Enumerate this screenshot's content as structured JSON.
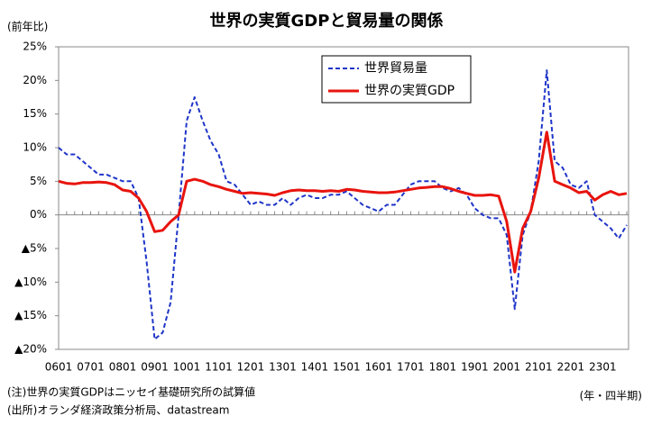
{
  "chart_data": {
    "type": "line",
    "title": "世界の実質GDPと貿易量の関係",
    "y_axis_label": "(前年比)",
    "x_axis_label": "(年・四半期)",
    "notes": [
      "(注)世界の実質GDPはニッセイ基礎研究所の試算値",
      "(出所)オランダ経済政策分析局、datastream"
    ],
    "categories": [
      "0601",
      null,
      null,
      null,
      "0701",
      null,
      null,
      null,
      "0801",
      null,
      null,
      null,
      "0901",
      null,
      null,
      null,
      "1001",
      null,
      null,
      null,
      "1101",
      null,
      null,
      null,
      "1201",
      null,
      null,
      null,
      "1301",
      null,
      null,
      null,
      "1401",
      null,
      null,
      null,
      "1501",
      null,
      null,
      null,
      "1601",
      null,
      null,
      null,
      "1701",
      null,
      null,
      null,
      "1801",
      null,
      null,
      null,
      "1901",
      null,
      null,
      null,
      "2001",
      null,
      null,
      null,
      "2101",
      null,
      null,
      null,
      "2201",
      null,
      null,
      null,
      "2301",
      null,
      null,
      null
    ],
    "series": [
      {
        "name": "世界貿易量",
        "color": "#1f35c8",
        "line_style": "dashed",
        "values": [
          10,
          9,
          9,
          8,
          7,
          6,
          6,
          5.5,
          5,
          5,
          2.5,
          -7,
          -18.5,
          -17.5,
          -13,
          0,
          14,
          17.5,
          14,
          11,
          9,
          5,
          4.5,
          3,
          1.5,
          2,
          1.5,
          1.5,
          2.5,
          1.5,
          2.5,
          3,
          2.5,
          2.5,
          3,
          3,
          3.5,
          2.5,
          1.5,
          1,
          0.5,
          1.5,
          1.5,
          3,
          4.5,
          5,
          5,
          5,
          4,
          3.5,
          4,
          3,
          1,
          0,
          -0.5,
          -0.5,
          -3,
          -14,
          -3,
          0.5,
          8,
          21.5,
          8,
          7,
          4.5,
          4,
          5,
          0,
          -1,
          -2,
          -3.5,
          -1.5
        ]
      },
      {
        "name": "世界の実質GDP",
        "color": "#e8140e",
        "line_style": "solid",
        "values": [
          5,
          4.7,
          4.6,
          4.8,
          4.8,
          4.9,
          4.8,
          4.5,
          3.7,
          3.5,
          2.5,
          0.5,
          -2.5,
          -2.3,
          -1,
          0,
          5,
          5.3,
          5,
          4.5,
          4.2,
          3.8,
          3.5,
          3.2,
          3.3,
          3.2,
          3.1,
          2.9,
          3.3,
          3.6,
          3.7,
          3.6,
          3.6,
          3.5,
          3.6,
          3.5,
          3.8,
          3.7,
          3.5,
          3.4,
          3.3,
          3.3,
          3.4,
          3.6,
          3.8,
          4,
          4.1,
          4.2,
          4.2,
          3.9,
          3.5,
          3.2,
          2.9,
          2.9,
          3,
          2.8,
          -1,
          -8.5,
          -2,
          0.5,
          5.5,
          12.3,
          5,
          4.5,
          4,
          3.3,
          3.5,
          2.2,
          3,
          3.5,
          3,
          3.2
        ]
      }
    ],
    "ylim": [
      -20,
      25
    ],
    "yticks": [
      {
        "value": -20,
        "label": "▲20%"
      },
      {
        "value": -15,
        "label": "▲15%"
      },
      {
        "value": -10,
        "label": "▲10%"
      },
      {
        "value": -5,
        "label": "▲5%"
      },
      {
        "value": 0,
        "label": "0%"
      },
      {
        "value": 5,
        "label": "5%"
      },
      {
        "value": 10,
        "label": "10%"
      },
      {
        "value": 15,
        "label": "15%"
      },
      {
        "value": 20,
        "label": "20%"
      },
      {
        "value": 25,
        "label": "25%"
      }
    ],
    "grid": false,
    "legend": "top"
  }
}
